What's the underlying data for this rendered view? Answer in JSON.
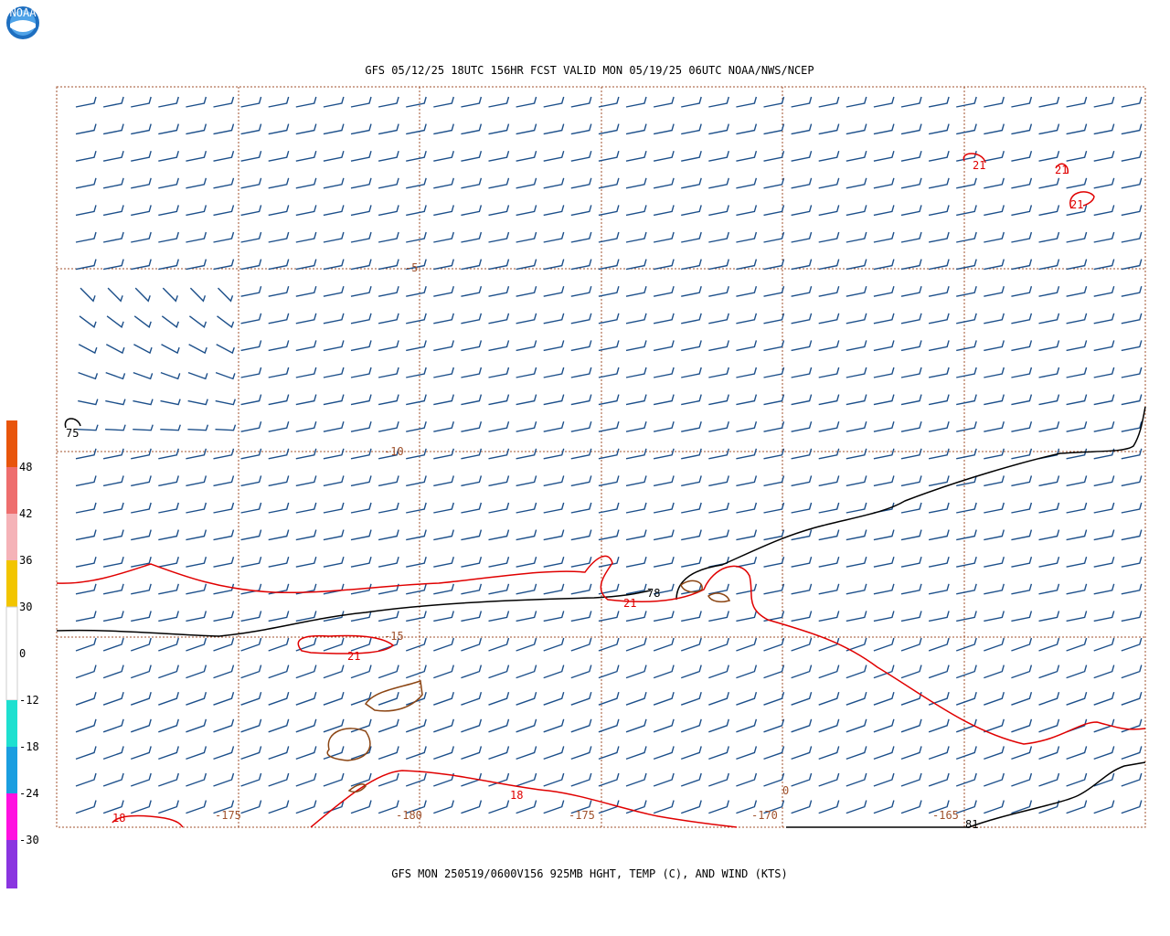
{
  "header": {
    "logo": "NOAA",
    "title": "GFS 05/12/25 18UTC 156HR FCST VALID MON 05/19/25 06UTC NOAA/NWS/NCEP"
  },
  "colorbar": {
    "labels": [
      "48",
      "42",
      "36",
      "30",
      "0",
      "-12",
      "-18",
      "-24",
      "-30"
    ]
  },
  "map": {
    "lat_labels": [
      "-5",
      "-10",
      "-15"
    ],
    "lon_labels": [
      "-175",
      "-180",
      "-175",
      "-170",
      "-165"
    ],
    "contour_labels": [
      "21",
      "21",
      "21",
      "75",
      "78",
      "21",
      "21",
      "18",
      "18",
      "0",
      "81"
    ]
  },
  "footer": {
    "caption": "GFS MON 250519/0600V156 925MB HGHT, TEMP (C), AND WIND (KTS)"
  }
}
